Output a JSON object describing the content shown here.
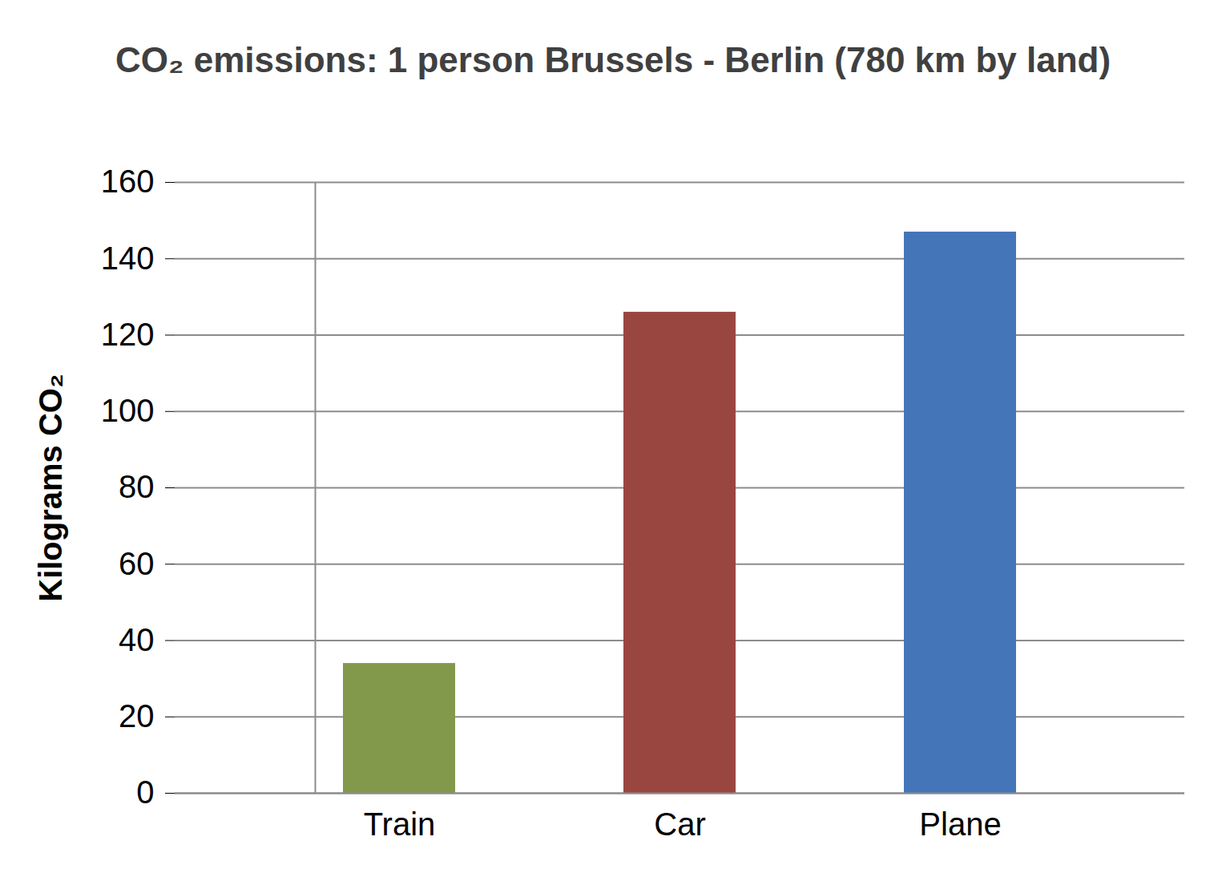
{
  "chart_data": {
    "type": "bar",
    "title": "CO₂ emissions: 1 person Brussels - Berlin (780 km by land)",
    "y_label": "Kilograms CO₂",
    "categories": [
      "Train",
      "Car",
      "Plane"
    ],
    "values": [
      34,
      126,
      147
    ],
    "colors": [
      "#82994b",
      "#9a4640",
      "#4575b9"
    ],
    "ylim": [
      0,
      160
    ],
    "yticks": [
      0,
      20,
      40,
      60,
      80,
      100,
      120,
      140,
      160
    ],
    "grid": true
  }
}
